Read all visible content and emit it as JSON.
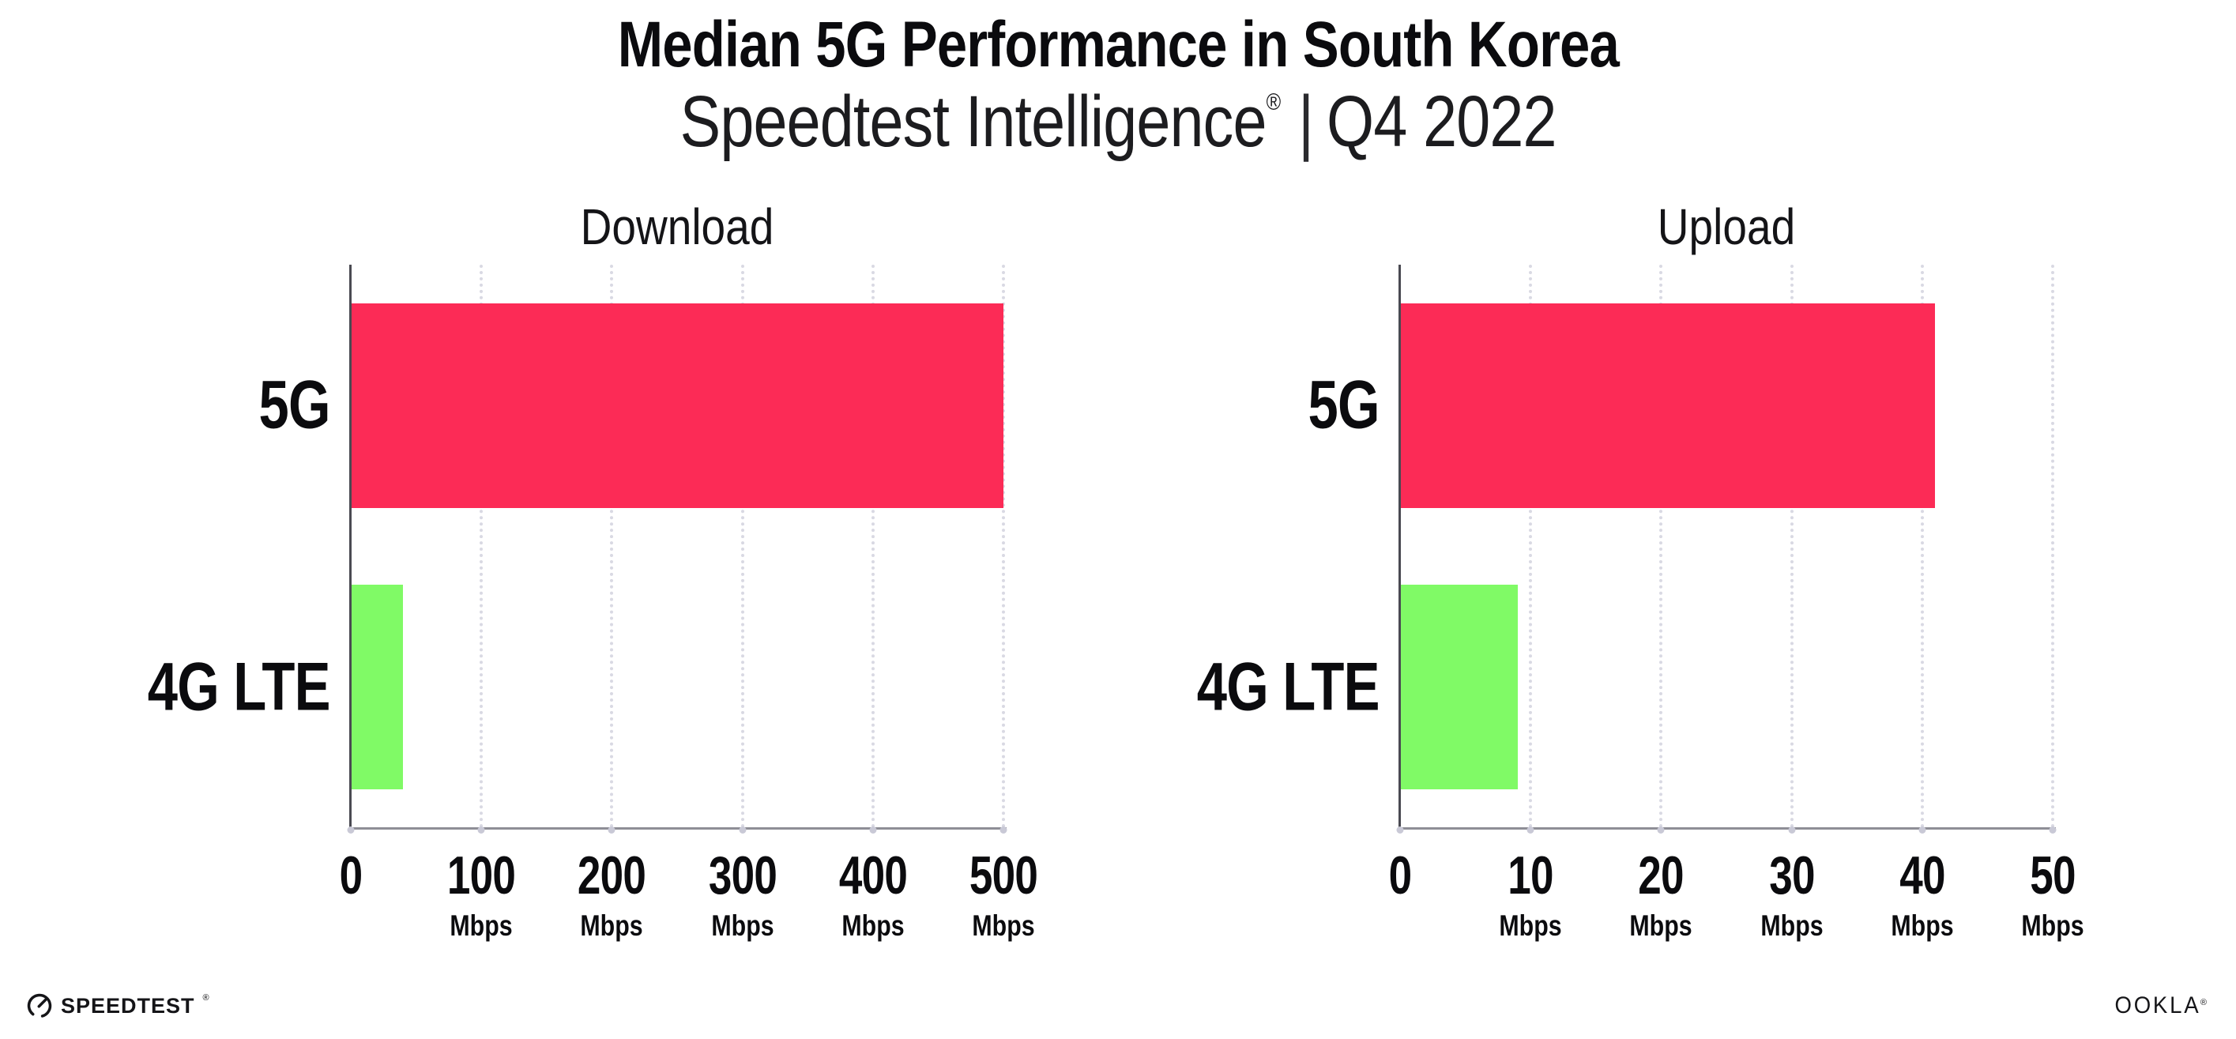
{
  "header": {
    "title": "Median 5G Performance in South Korea",
    "subtitle_brand": "Speedtest Intelligence",
    "reg_mark": "®",
    "subtitle_separator": "|",
    "subtitle_period": "Q4 2022"
  },
  "footer": {
    "speedtest_label": "SPEEDTEST",
    "speedtest_mark": "®",
    "ookla_label": "OOKLA",
    "ookla_mark": "®"
  },
  "colors": {
    "bar_5g": "#FC2B56",
    "bar_4g_lte": "#80FA66",
    "gridline": "#D9D9E3",
    "axis_x": "#8E8E96",
    "axis_y": "#4A4A52",
    "text": "#0B0B0E"
  },
  "chart_data": [
    {
      "type": "bar",
      "orientation": "horizontal",
      "title": "Download",
      "categories": [
        "5G",
        "4G LTE"
      ],
      "values": [
        500,
        40
      ],
      "unit": "Mbps",
      "xlim": [
        0,
        500
      ],
      "xticks": [
        0,
        100,
        200,
        300,
        400,
        500
      ],
      "tick_unit_label": "Mbps",
      "grid": "dotted-vertical",
      "legend": "none",
      "bar_colors": [
        "#FC2B56",
        "#80FA66"
      ]
    },
    {
      "type": "bar",
      "orientation": "horizontal",
      "title": "Upload",
      "categories": [
        "5G",
        "4G LTE"
      ],
      "values": [
        41,
        9
      ],
      "unit": "Mbps",
      "xlim": [
        0,
        50
      ],
      "xticks": [
        0,
        10,
        20,
        30,
        40,
        50
      ],
      "tick_unit_label": "Mbps",
      "grid": "dotted-vertical",
      "legend": "none",
      "bar_colors": [
        "#FC2B56",
        "#80FA66"
      ]
    }
  ]
}
